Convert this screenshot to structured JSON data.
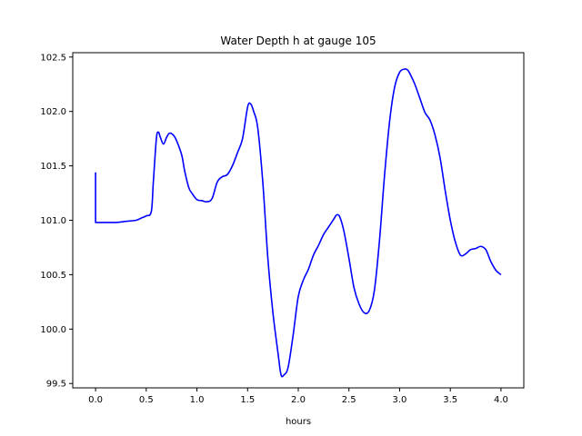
{
  "chart_data": {
    "type": "line",
    "title": "Water Depth h at gauge 105",
    "xlabel": "hours",
    "ylabel": "",
    "xlim": [
      -0.225,
      4.225
    ],
    "ylim": [
      99.46,
      102.54
    ],
    "xticks": [
      0.0,
      0.5,
      1.0,
      1.5,
      2.0,
      2.5,
      3.0,
      3.5,
      4.0
    ],
    "xtick_labels": [
      "0.0",
      "0.5",
      "1.0",
      "1.5",
      "2.0",
      "2.5",
      "3.0",
      "3.5",
      "4.0"
    ],
    "yticks": [
      99.5,
      100.0,
      100.5,
      101.0,
      101.5,
      102.0,
      102.5
    ],
    "ytick_labels": [
      "99.5",
      "100.0",
      "100.5",
      "101.0",
      "101.5",
      "102.0",
      "102.5"
    ],
    "grid": false,
    "series": [
      {
        "color": "#0000ff",
        "x": [
          0.0,
          0.0,
          0.1,
          0.2,
          0.3,
          0.4,
          0.45,
          0.5,
          0.55,
          0.57,
          0.6,
          0.62,
          0.64,
          0.67,
          0.7,
          0.73,
          0.77,
          0.8,
          0.85,
          0.88,
          0.92,
          0.95,
          1.0,
          1.05,
          1.1,
          1.15,
          1.2,
          1.25,
          1.3,
          1.35,
          1.4,
          1.45,
          1.5,
          1.53,
          1.56,
          1.6,
          1.65,
          1.7,
          1.75,
          1.8,
          1.83,
          1.86,
          1.9,
          1.95,
          2.0,
          2.05,
          2.1,
          2.15,
          2.2,
          2.25,
          2.3,
          2.35,
          2.38,
          2.41,
          2.45,
          2.5,
          2.55,
          2.6,
          2.65,
          2.7,
          2.75,
          2.8,
          2.85,
          2.9,
          2.95,
          3.0,
          3.05,
          3.08,
          3.1,
          3.15,
          3.2,
          3.25,
          3.3,
          3.35,
          3.4,
          3.45,
          3.5,
          3.55,
          3.6,
          3.65,
          3.7,
          3.75,
          3.8,
          3.85,
          3.9,
          3.95,
          4.0
        ],
        "y": [
          101.44,
          100.98,
          100.98,
          100.98,
          100.99,
          101.0,
          101.02,
          101.04,
          101.08,
          101.35,
          101.75,
          101.81,
          101.76,
          101.7,
          101.76,
          101.8,
          101.78,
          101.73,
          101.6,
          101.45,
          101.3,
          101.25,
          101.19,
          101.18,
          101.17,
          101.2,
          101.35,
          101.4,
          101.42,
          101.5,
          101.62,
          101.75,
          102.04,
          102.07,
          102.0,
          101.85,
          101.35,
          100.65,
          100.15,
          99.78,
          99.58,
          99.58,
          99.65,
          99.95,
          100.3,
          100.45,
          100.55,
          100.68,
          100.77,
          100.87,
          100.94,
          101.01,
          101.05,
          101.03,
          100.9,
          100.65,
          100.38,
          100.23,
          100.15,
          100.17,
          100.35,
          100.8,
          101.4,
          101.9,
          102.22,
          102.36,
          102.39,
          102.38,
          102.35,
          102.25,
          102.12,
          101.99,
          101.92,
          101.78,
          101.57,
          101.27,
          101.0,
          100.8,
          100.68,
          100.69,
          100.73,
          100.74,
          100.76,
          100.73,
          100.62,
          100.54,
          100.5
        ]
      }
    ]
  }
}
